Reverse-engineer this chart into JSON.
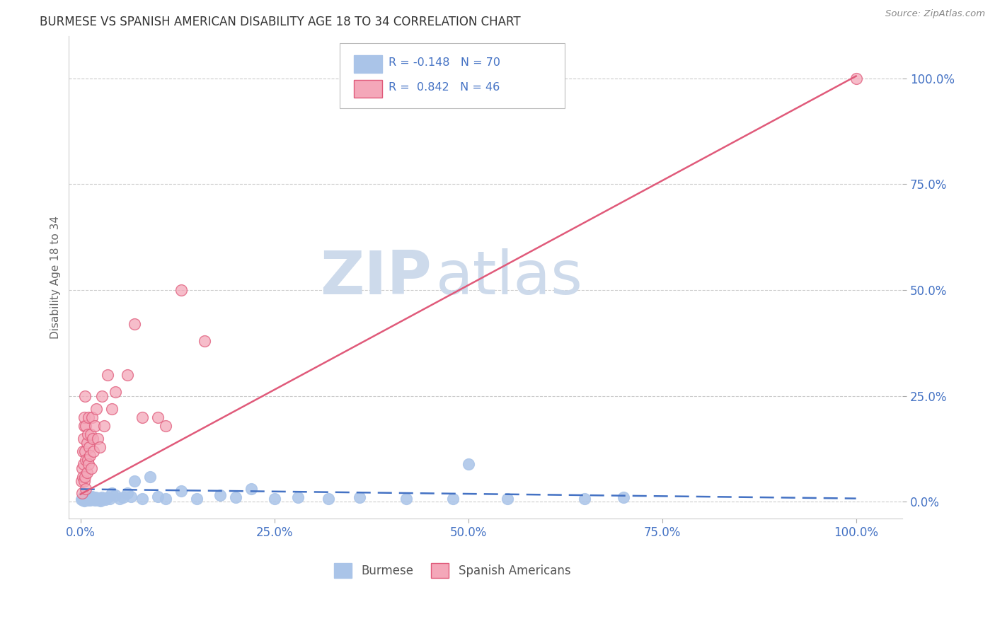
{
  "title": "BURMESE VS SPANISH AMERICAN DISABILITY AGE 18 TO 34 CORRELATION CHART",
  "source": "Source: ZipAtlas.com",
  "ylabel": "Disability Age 18 to 34",
  "burmese_R": -0.148,
  "burmese_N": 70,
  "spanish_R": 0.842,
  "spanish_N": 46,
  "burmese_color": "#aac4e8",
  "burmese_line_color": "#4472c4",
  "spanish_color": "#f4a7b9",
  "spanish_line_color": "#e05a7a",
  "watermark_zip": "ZIP",
  "watermark_atlas": "atlas",
  "watermark_color": "#cddaeb",
  "tick_label_color": "#4472c4",
  "title_color": "#333333",
  "background_color": "#ffffff",
  "grid_color": "#cccccc",
  "legend_label_burmese": "Burmese",
  "legend_label_spanish": "Spanish Americans",
  "burmese_x": [
    0.001,
    0.002,
    0.003,
    0.003,
    0.004,
    0.004,
    0.005,
    0.005,
    0.005,
    0.006,
    0.006,
    0.007,
    0.007,
    0.008,
    0.008,
    0.009,
    0.009,
    0.01,
    0.01,
    0.011,
    0.011,
    0.012,
    0.012,
    0.013,
    0.014,
    0.015,
    0.015,
    0.016,
    0.017,
    0.018,
    0.019,
    0.02,
    0.021,
    0.022,
    0.023,
    0.024,
    0.025,
    0.026,
    0.027,
    0.028,
    0.03,
    0.032,
    0.035,
    0.038,
    0.04,
    0.045,
    0.05,
    0.055,
    0.06,
    0.065,
    0.07,
    0.08,
    0.09,
    0.1,
    0.11,
    0.13,
    0.15,
    0.18,
    0.2,
    0.22,
    0.25,
    0.28,
    0.32,
    0.36,
    0.42,
    0.48,
    0.5,
    0.55,
    0.65,
    0.7
  ],
  "burmese_y": [
    0.005,
    0.008,
    0.004,
    0.01,
    0.006,
    0.012,
    0.003,
    0.007,
    0.015,
    0.005,
    0.009,
    0.004,
    0.011,
    0.006,
    0.013,
    0.004,
    0.008,
    0.005,
    0.012,
    0.007,
    0.01,
    0.004,
    0.008,
    0.005,
    0.01,
    0.006,
    0.012,
    0.005,
    0.008,
    0.004,
    0.01,
    0.006,
    0.005,
    0.008,
    0.004,
    0.009,
    0.006,
    0.003,
    0.007,
    0.01,
    0.008,
    0.005,
    0.01,
    0.007,
    0.02,
    0.015,
    0.008,
    0.01,
    0.02,
    0.012,
    0.05,
    0.008,
    0.06,
    0.012,
    0.008,
    0.025,
    0.008,
    0.015,
    0.01,
    0.03,
    0.008,
    0.01,
    0.008,
    0.01,
    0.008,
    0.007,
    0.09,
    0.007,
    0.008,
    0.01
  ],
  "spanish_x": [
    0.001,
    0.002,
    0.002,
    0.003,
    0.003,
    0.004,
    0.004,
    0.005,
    0.005,
    0.005,
    0.006,
    0.006,
    0.006,
    0.007,
    0.007,
    0.007,
    0.008,
    0.008,
    0.009,
    0.009,
    0.01,
    0.01,
    0.011,
    0.012,
    0.013,
    0.014,
    0.015,
    0.016,
    0.017,
    0.018,
    0.02,
    0.022,
    0.025,
    0.028,
    0.03,
    0.035,
    0.04,
    0.045,
    0.06,
    0.07,
    0.08,
    0.1,
    0.11,
    0.13,
    0.16,
    1.0
  ],
  "spanish_y": [
    0.05,
    0.08,
    0.02,
    0.12,
    0.06,
    0.15,
    0.09,
    0.18,
    0.05,
    0.2,
    0.12,
    0.06,
    0.25,
    0.1,
    0.03,
    0.18,
    0.14,
    0.07,
    0.16,
    0.1,
    0.09,
    0.2,
    0.13,
    0.11,
    0.16,
    0.08,
    0.2,
    0.15,
    0.12,
    0.18,
    0.22,
    0.15,
    0.13,
    0.25,
    0.18,
    0.3,
    0.22,
    0.26,
    0.3,
    0.42,
    0.2,
    0.2,
    0.18,
    0.5,
    0.38,
    1.0
  ],
  "burmese_line_x": [
    0.0,
    1.0
  ],
  "burmese_line_y": [
    0.03,
    0.008
  ],
  "spanish_line_x": [
    0.0,
    1.0
  ],
  "spanish_line_y": [
    0.018,
    1.005
  ],
  "x_ticks": [
    0.0,
    0.25,
    0.5,
    0.75,
    1.0
  ],
  "y_ticks": [
    0.0,
    0.25,
    0.5,
    0.75,
    1.0
  ],
  "xlim": [
    -0.015,
    1.06
  ],
  "ylim": [
    -0.04,
    1.1
  ]
}
